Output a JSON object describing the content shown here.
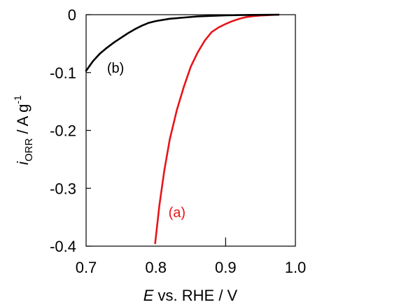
{
  "chart_data": {
    "type": "line",
    "title": "",
    "xlabel": {
      "italic": "E",
      "rest": " vs. RHE / V"
    },
    "ylabel": {
      "italic": "i",
      "subscript": "ORR",
      "unit": " / A g",
      "superscript": "-1"
    },
    "xlim": [
      0.7,
      1.0
    ],
    "ylim": [
      -0.4,
      0.0
    ],
    "xticks": [
      "0.7",
      "0.8",
      "0.9",
      "1.0"
    ],
    "yticks": [
      "0",
      "-0.1",
      "-0.2",
      "-0.3",
      "-0.4"
    ],
    "grid": false,
    "series": [
      {
        "name": "(a)",
        "color": "#e8141a",
        "x": [
          0.799,
          0.805,
          0.812,
          0.82,
          0.83,
          0.84,
          0.85,
          0.86,
          0.87,
          0.88,
          0.89,
          0.9,
          0.91,
          0.92,
          0.93,
          0.94,
          0.95,
          0.96,
          0.97,
          0.976
        ],
        "y": [
          -0.395,
          -0.33,
          -0.27,
          -0.215,
          -0.165,
          -0.125,
          -0.09,
          -0.065,
          -0.045,
          -0.03,
          -0.022,
          -0.016,
          -0.011,
          -0.007,
          -0.004,
          -0.0025,
          -0.0015,
          -0.0008,
          -0.0003,
          0.0
        ]
      },
      {
        "name": "(b)",
        "color": "#000000",
        "x": [
          0.7,
          0.71,
          0.72,
          0.73,
          0.74,
          0.75,
          0.76,
          0.77,
          0.78,
          0.79,
          0.8,
          0.82,
          0.84,
          0.86,
          0.88,
          0.9,
          0.92,
          0.94,
          0.96,
          0.976
        ],
        "y": [
          -0.097,
          -0.08,
          -0.067,
          -0.057,
          -0.048,
          -0.04,
          -0.032,
          -0.025,
          -0.019,
          -0.014,
          -0.011,
          -0.007,
          -0.005,
          -0.003,
          -0.002,
          -0.0012,
          -0.0007,
          -0.0004,
          -0.0002,
          0.0
        ]
      }
    ],
    "annotations": [
      {
        "text": "(a)",
        "series": "(a)",
        "x": 0.818,
        "y": -0.35
      },
      {
        "text": "(b)",
        "series": "(b)",
        "x": 0.73,
        "y": -0.1
      }
    ],
    "extra_ticks": [
      {
        "x": 0.9,
        "y": -0.4,
        "len": -0.015
      }
    ]
  }
}
